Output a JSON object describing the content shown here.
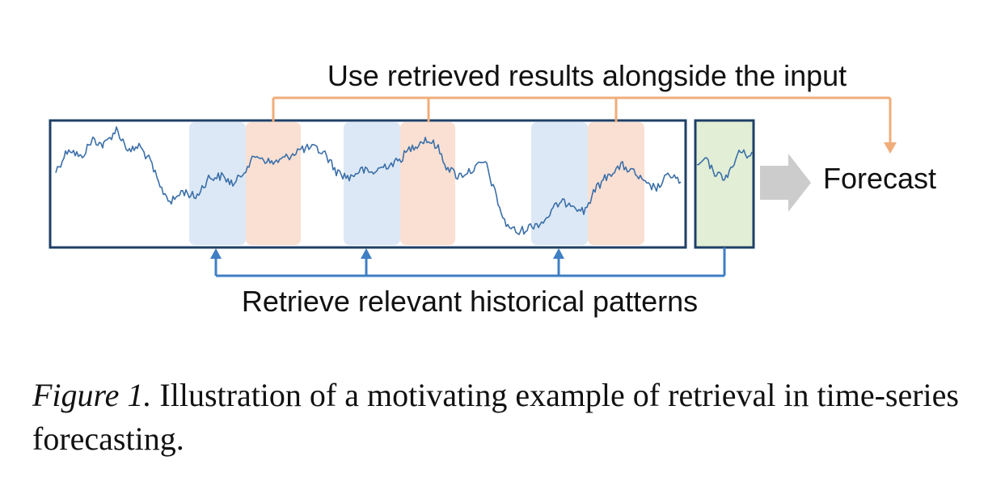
{
  "diagram": {
    "top_label": "Use retrieved results alongside the input",
    "bottom_label": "Retrieve relevant historical patterns",
    "forecast_label": "Forecast",
    "colors": {
      "frame": "#1f3f66",
      "series": "#3b6fa8",
      "query_region": "#dce8f5",
      "result_region": "#fae0d3",
      "input_region": "#e2efd6",
      "use_arrow": "#f0ad7a",
      "retrieve_arrow": "#3f7fc4",
      "forecast_arrow": "#cccccc"
    }
  },
  "caption": {
    "label": "Figure 1.",
    "text": "Illustration of a motivating example of retrieval in time-series forecasting."
  }
}
